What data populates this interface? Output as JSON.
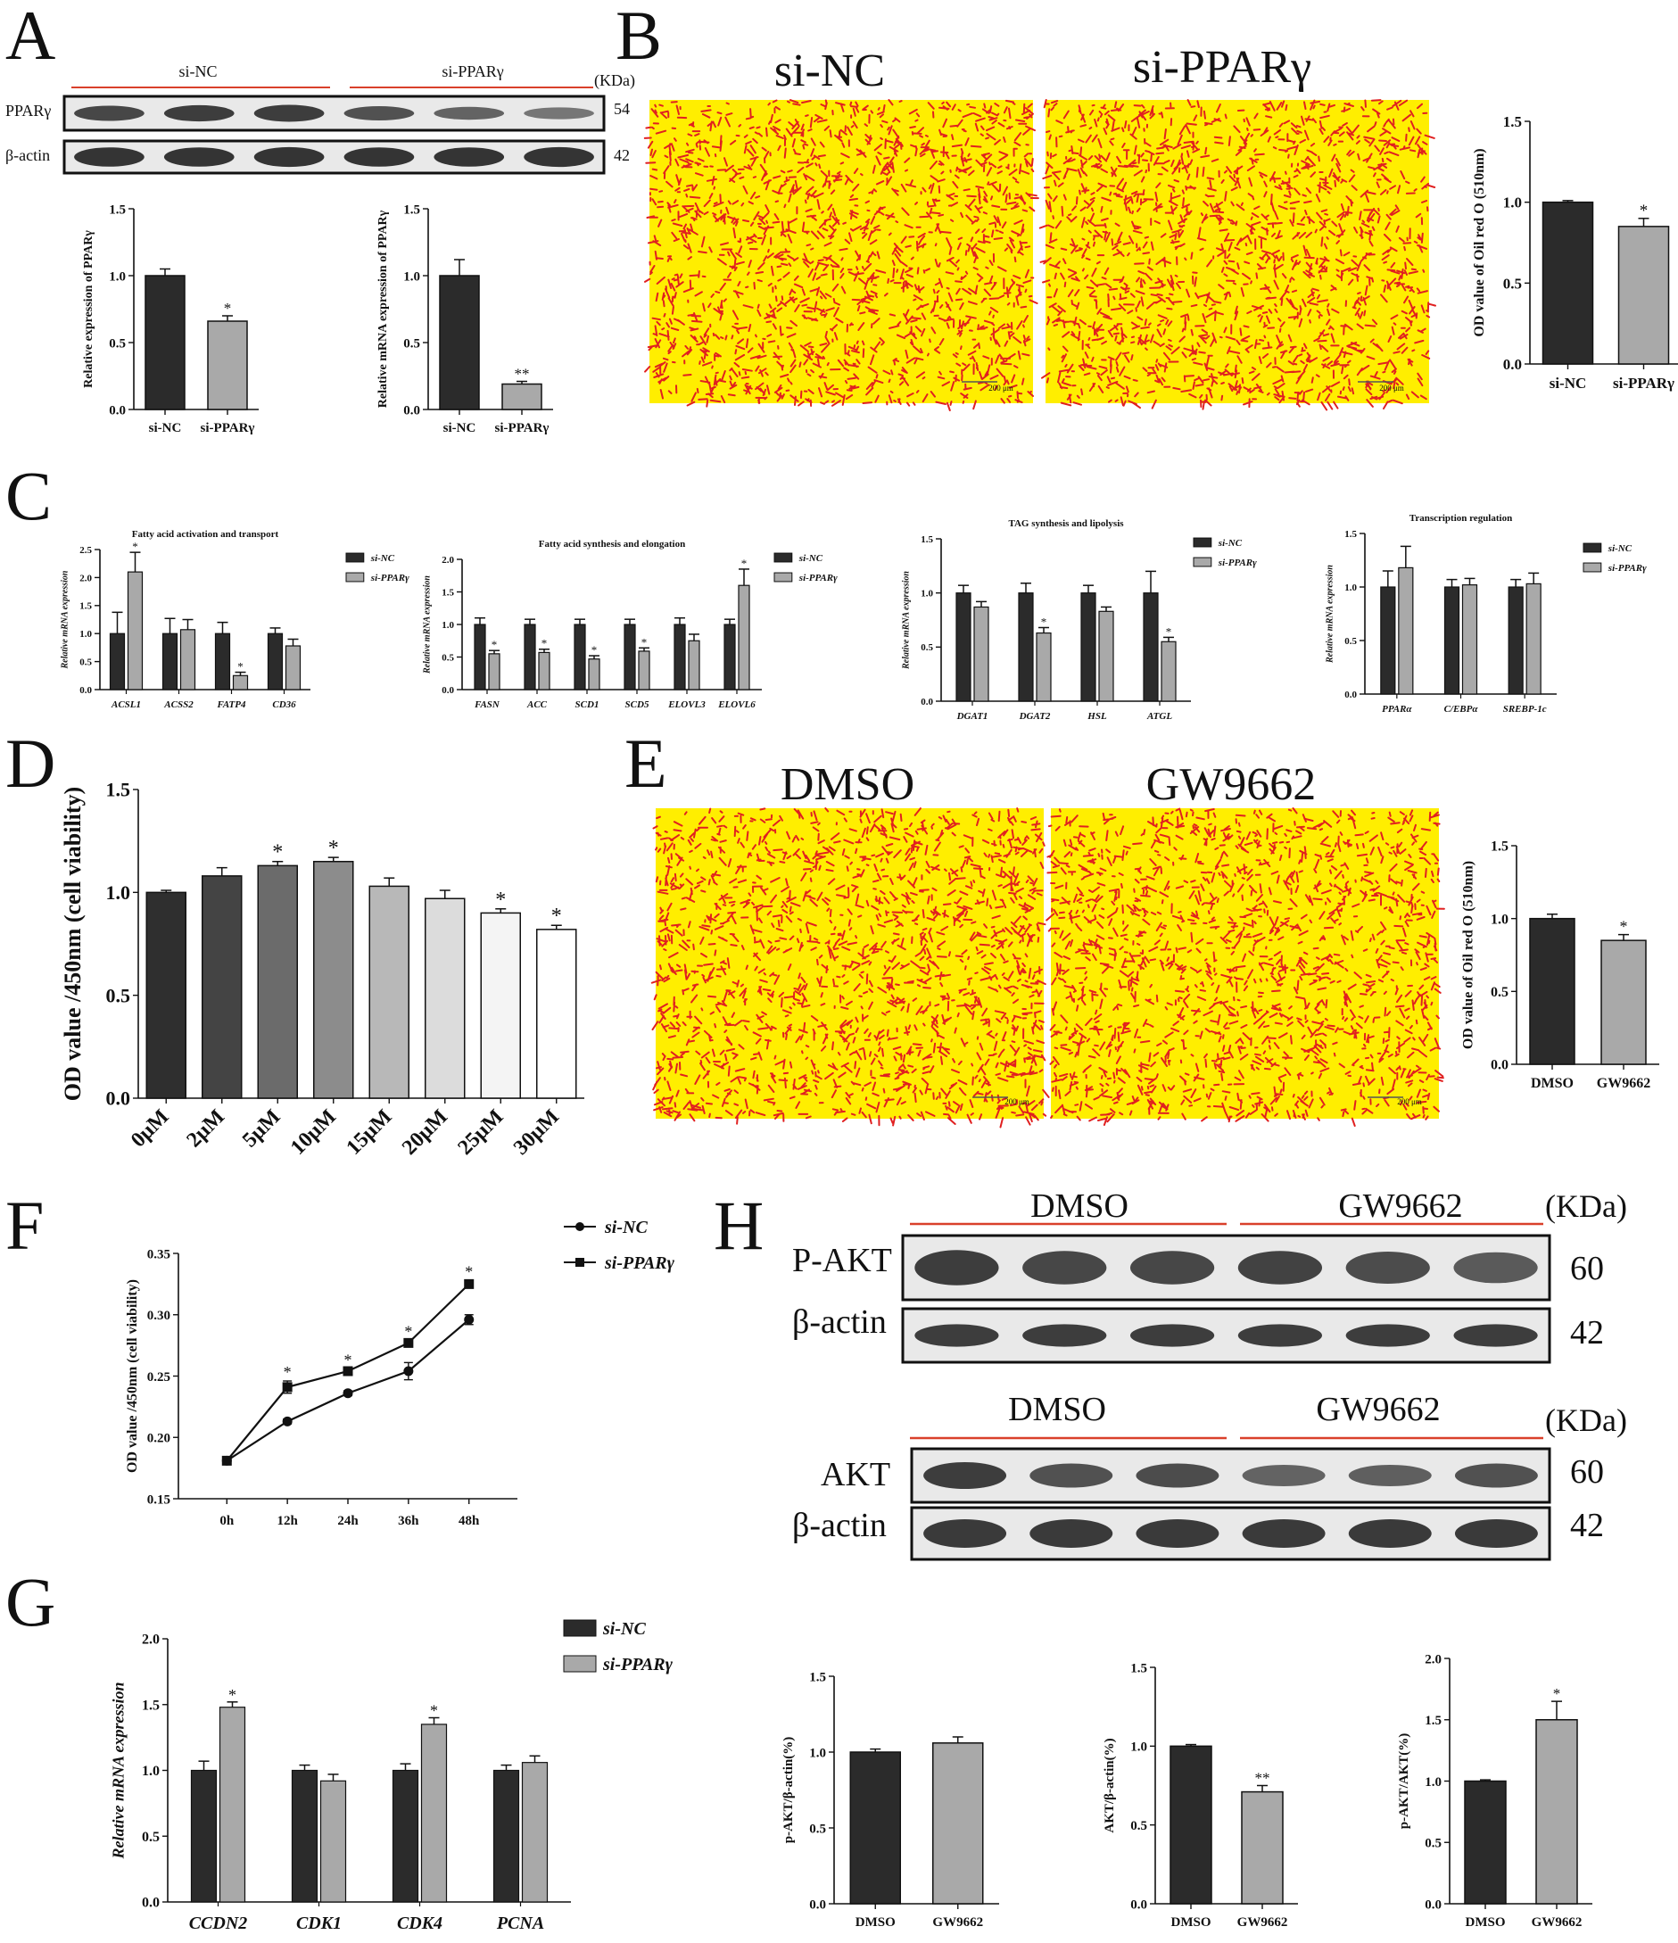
{
  "panel_labels": [
    "A",
    "B",
    "C",
    "D",
    "E",
    "F",
    "G",
    "H"
  ],
  "colors": {
    "dark": "#2b2b2b",
    "light": "#a9a9a9",
    "stain_bg": "#ffee00",
    "stain_dot": "#e02020",
    "red_line": "#d9402b"
  },
  "blots": {
    "A": {
      "groups": [
        "si-NC",
        "si-PPARγ"
      ],
      "kda_label": "(KDa)",
      "rows": [
        {
          "label": "PPARγ",
          "kda": "54"
        },
        {
          "label": "β-actin",
          "kda": "42"
        }
      ]
    },
    "H1": {
      "groups": [
        "DMSO",
        "GW9662"
      ],
      "kda_label": "(KDa)",
      "rows": [
        {
          "label": "P-AKT",
          "kda": "60"
        },
        {
          "label": "β-actin",
          "kda": "42"
        }
      ]
    },
    "H2": {
      "groups": [
        "DMSO",
        "GW9662"
      ],
      "kda_label": "(KDa)",
      "rows": [
        {
          "label": "AKT",
          "kda": "60"
        },
        {
          "label": "β-actin",
          "kda": "42"
        }
      ]
    }
  },
  "stains": {
    "B": {
      "titles": [
        "si-NC",
        "si-PPARγ"
      ],
      "scale": "200 μm"
    },
    "E": {
      "titles": [
        "DMSO",
        "GW9662"
      ],
      "scale": "200 μm"
    }
  },
  "chart_data": [
    {
      "id": "A1",
      "type": "bar",
      "title": "",
      "xlabel": "",
      "ylabel": "Relative expression of PPARγ",
      "ylim": [
        0,
        1.5
      ],
      "yticks": [
        "0.0",
        "0.5",
        "1.0",
        "1.5"
      ],
      "categories": [
        "si-NC",
        "si-PPARγ"
      ],
      "values": [
        1.0,
        0.66
      ],
      "errors": [
        0.05,
        0.04
      ],
      "sig": [
        "",
        "*"
      ]
    },
    {
      "id": "A2",
      "type": "bar",
      "title": "",
      "xlabel": "",
      "ylabel": "Relative mRNA expression of PPARγ",
      "ylim": [
        0,
        1.5
      ],
      "yticks": [
        "0.0",
        "0.5",
        "1.0",
        "1.5"
      ],
      "categories": [
        "si-NC",
        "si-PPARγ"
      ],
      "values": [
        1.0,
        0.19
      ],
      "errors": [
        0.12,
        0.02
      ],
      "sig": [
        "",
        "**"
      ]
    },
    {
      "id": "B",
      "type": "bar",
      "title": "",
      "xlabel": "",
      "ylabel": "OD value of Oil red O (510nm)",
      "ylim": [
        0,
        1.5
      ],
      "yticks": [
        "0.0",
        "0.5",
        "1.0",
        "1.5"
      ],
      "categories": [
        "si-NC",
        "si-PPARγ"
      ],
      "values": [
        1.0,
        0.85
      ],
      "errors": [
        0.01,
        0.05
      ],
      "sig": [
        "",
        "*"
      ]
    },
    {
      "id": "C1",
      "type": "bar",
      "title": "Fatty acid activation and transport",
      "ylabel": "Relative mRNA expression",
      "ylim": [
        0,
        2.5
      ],
      "yticks": [
        "0.0",
        "0.5",
        "1.0",
        "1.5",
        "2.0",
        "2.5"
      ],
      "categories": [
        "ACSL1",
        "ACSS2",
        "FATP4",
        "CD36"
      ],
      "legend": [
        "si-NC",
        "si-PPARγ"
      ],
      "series": [
        {
          "name": "si-NC",
          "values": [
            1.0,
            1.0,
            1.0,
            1.0
          ],
          "errors": [
            0.38,
            0.27,
            0.2,
            0.1
          ]
        },
        {
          "name": "si-PPARγ",
          "values": [
            2.1,
            1.07,
            0.25,
            0.78
          ],
          "errors": [
            0.35,
            0.18,
            0.06,
            0.12
          ]
        }
      ],
      "sig": [
        [
          "",
          "*"
        ],
        [
          "",
          ""
        ],
        [
          "",
          "*"
        ],
        [
          "",
          ""
        ]
      ]
    },
    {
      "id": "C2",
      "type": "bar",
      "title": "Fatty acid synthesis and elongation",
      "ylabel": "Relative mRNA expression",
      "ylim": [
        0,
        2.0
      ],
      "yticks": [
        "0.0",
        "0.5",
        "1.0",
        "1.5",
        "2.0"
      ],
      "categories": [
        "FASN",
        "ACC",
        "SCD1",
        "SCD5",
        "ELOVL3",
        "ELOVL6"
      ],
      "legend": [
        "si-NC",
        "si-PPARγ"
      ],
      "series": [
        {
          "name": "si-NC",
          "values": [
            1.0,
            1.0,
            1.0,
            1.0,
            1.0,
            1.0
          ],
          "errors": [
            0.1,
            0.08,
            0.08,
            0.08,
            0.1,
            0.08
          ]
        },
        {
          "name": "si-PPARγ",
          "values": [
            0.55,
            0.57,
            0.47,
            0.59,
            0.75,
            1.6
          ],
          "errors": [
            0.05,
            0.05,
            0.05,
            0.05,
            0.1,
            0.25
          ]
        }
      ],
      "sig": [
        [
          "",
          "*"
        ],
        [
          "",
          "*"
        ],
        [
          "",
          "*"
        ],
        [
          "",
          "*"
        ],
        [
          "",
          ""
        ],
        [
          "",
          "*"
        ]
      ]
    },
    {
      "id": "C3",
      "type": "bar",
      "title": "TAG synthesis and lipolysis",
      "ylabel": "Relative mRNA expression",
      "ylim": [
        0,
        1.5
      ],
      "yticks": [
        "0.0",
        "0.5",
        "1.0",
        "1.5"
      ],
      "categories": [
        "DGAT1",
        "DGAT2",
        "HSL",
        "ATGL"
      ],
      "legend": [
        "si-NC",
        "si-PPARγ"
      ],
      "series": [
        {
          "name": "si-NC",
          "values": [
            1.0,
            1.0,
            1.0,
            1.0
          ],
          "errors": [
            0.07,
            0.09,
            0.07,
            0.2
          ]
        },
        {
          "name": "si-PPARγ",
          "values": [
            0.87,
            0.63,
            0.83,
            0.55
          ],
          "errors": [
            0.05,
            0.05,
            0.04,
            0.04
          ]
        }
      ],
      "sig": [
        [
          "",
          ""
        ],
        [
          "",
          "*"
        ],
        [
          "",
          ""
        ],
        [
          "",
          "*"
        ]
      ]
    },
    {
      "id": "C4",
      "type": "bar",
      "title": "Transcription regulation",
      "ylabel": "Relative mRNA expression",
      "ylim": [
        0,
        1.5
      ],
      "yticks": [
        "0.0",
        "0.5",
        "1.0",
        "1.5"
      ],
      "categories": [
        "PPARα",
        "C/EBPα",
        "SREBP-1c"
      ],
      "legend": [
        "si-NC",
        "si-PPARγ"
      ],
      "series": [
        {
          "name": "si-NC",
          "values": [
            1.0,
            1.0,
            1.0
          ],
          "errors": [
            0.15,
            0.07,
            0.07
          ]
        },
        {
          "name": "si-PPARγ",
          "values": [
            1.18,
            1.02,
            1.03
          ],
          "errors": [
            0.2,
            0.06,
            0.1
          ]
        }
      ],
      "sig": [
        [
          "",
          ""
        ],
        [
          "",
          ""
        ],
        [
          "",
          ""
        ]
      ]
    },
    {
      "id": "D",
      "type": "bar",
      "title": "",
      "ylabel": "OD value /450nm (cell viability)",
      "ylim": [
        0,
        1.5
      ],
      "yticks": [
        "0.0",
        "0.5",
        "1.0",
        "1.5"
      ],
      "categories": [
        "0μM",
        "2μM",
        "5μM",
        "10μM",
        "15μM",
        "20μM",
        "25μM",
        "30μM"
      ],
      "values": [
        1.0,
        1.08,
        1.13,
        1.15,
        1.03,
        0.97,
        0.9,
        0.82
      ],
      "errors": [
        0.01,
        0.04,
        0.02,
        0.02,
        0.04,
        0.04,
        0.02,
        0.02
      ],
      "sig": [
        "",
        "",
        "*",
        "*",
        "",
        "",
        "*",
        "*"
      ],
      "fills": [
        "#2f2f2f",
        "#444444",
        "#6b6b6b",
        "#8c8c8c",
        "#b8b8b8",
        "#dcdcdc",
        "#f4f4f4",
        "#ffffff"
      ]
    },
    {
      "id": "E",
      "type": "bar",
      "title": "",
      "ylabel": "OD value of Oil red O (510nm)",
      "ylim": [
        0,
        1.5
      ],
      "yticks": [
        "0.0",
        "0.5",
        "1.0",
        "1.5"
      ],
      "categories": [
        "DMSO",
        "GW9662"
      ],
      "values": [
        1.0,
        0.85
      ],
      "errors": [
        0.03,
        0.04
      ],
      "sig": [
        "",
        "*"
      ]
    },
    {
      "id": "F",
      "type": "line",
      "title": "",
      "ylabel": "OD value /450nm (cell viability)",
      "ylim": [
        0.15,
        0.35
      ],
      "yticks": [
        "0.15",
        "0.20",
        "0.25",
        "0.30",
        "0.35"
      ],
      "categories": [
        "0h",
        "12h",
        "24h",
        "36h",
        "48h"
      ],
      "legend": [
        "si-NC",
        "si-PPARγ"
      ],
      "series": [
        {
          "name": "si-NC",
          "values": [
            0.181,
            0.213,
            0.236,
            0.254,
            0.296
          ],
          "errors": [
            0.002,
            0.002,
            0.002,
            0.007,
            0.004
          ]
        },
        {
          "name": "si-PPARγ",
          "values": [
            0.181,
            0.241,
            0.254,
            0.277,
            0.325
          ],
          "errors": [
            0.002,
            0.005,
            0.002,
            0.002,
            0.003
          ]
        }
      ],
      "sig": [
        "",
        "*",
        "*",
        "*",
        "*"
      ]
    },
    {
      "id": "G",
      "type": "bar",
      "title": "",
      "ylabel": "Relative mRNA expression",
      "ylim": [
        0,
        2.0
      ],
      "yticks": [
        "0.0",
        "0.5",
        "1.0",
        "1.5",
        "2.0"
      ],
      "categories": [
        "CCDN2",
        "CDK1",
        "CDK4",
        "PCNA"
      ],
      "legend": [
        "si-NC",
        "si-PPARγ"
      ],
      "series": [
        {
          "name": "si-NC",
          "values": [
            1.0,
            1.0,
            1.0,
            1.0
          ],
          "errors": [
            0.07,
            0.04,
            0.05,
            0.04
          ]
        },
        {
          "name": "si-PPARγ",
          "values": [
            1.48,
            0.92,
            1.35,
            1.06
          ],
          "errors": [
            0.04,
            0.05,
            0.05,
            0.05
          ]
        }
      ],
      "sig": [
        [
          "",
          "*"
        ],
        [
          "",
          ""
        ],
        [
          "",
          "*"
        ],
        [
          "",
          ""
        ]
      ]
    },
    {
      "id": "H1",
      "type": "bar",
      "title": "",
      "ylabel": "p-AKT/β-actin(%)",
      "ylim": [
        0,
        1.5
      ],
      "yticks": [
        "0.0",
        "0.5",
        "1.0",
        "1.5"
      ],
      "categories": [
        "DMSO",
        "GW9662"
      ],
      "values": [
        1.0,
        1.06
      ],
      "errors": [
        0.02,
        0.04
      ],
      "sig": [
        "",
        ""
      ]
    },
    {
      "id": "H2",
      "type": "bar",
      "title": "",
      "ylabel": "AKT/β-actin(%)",
      "ylim": [
        0,
        1.5
      ],
      "yticks": [
        "0.0",
        "0.5",
        "1.0",
        "1.5"
      ],
      "categories": [
        "DMSO",
        "GW9662"
      ],
      "values": [
        1.0,
        0.71
      ],
      "errors": [
        0.01,
        0.04
      ],
      "sig": [
        "",
        "**"
      ]
    },
    {
      "id": "H3",
      "type": "bar",
      "title": "",
      "ylabel": "p-AKT/AKT(%)",
      "ylim": [
        0,
        2.0
      ],
      "yticks": [
        "0.0",
        "0.5",
        "1.0",
        "1.5",
        "2.0"
      ],
      "categories": [
        "DMSO",
        "GW9662"
      ],
      "values": [
        1.0,
        1.5
      ],
      "errors": [
        0.01,
        0.15
      ],
      "sig": [
        "",
        "*"
      ]
    }
  ]
}
